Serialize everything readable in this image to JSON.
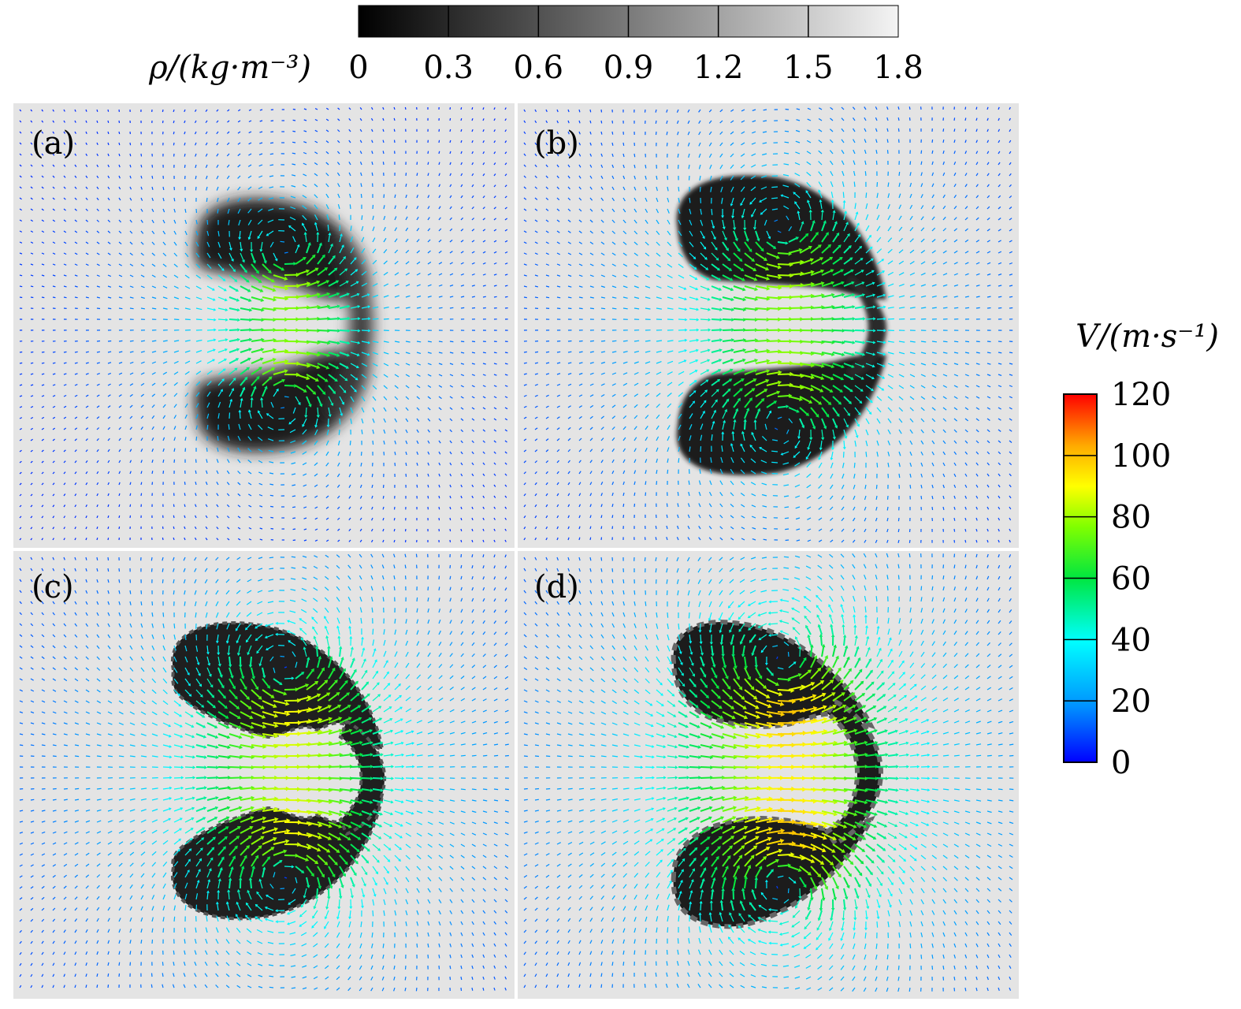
{
  "figure": {
    "density_colorbar": {
      "label": "ρ/(kg·m⁻³)",
      "ticks": [
        "0",
        "0.3",
        "0.6",
        "0.9",
        "1.2",
        "1.5",
        "1.8"
      ],
      "range": [
        0,
        1.8
      ],
      "colors": [
        "#000000",
        "#f2f2f2"
      ]
    },
    "velocity_colorbar": {
      "label": "V/(m·s⁻¹)",
      "ticks": [
        "120",
        "100",
        "80",
        "60",
        "40",
        "20",
        "0"
      ],
      "range": [
        0,
        120
      ],
      "colors": [
        "#0000ff",
        "#00a0ff",
        "#00ffff",
        "#00ff40",
        "#80ff00",
        "#ffff00",
        "#ff9900",
        "#ff0000"
      ]
    },
    "background_density_color": "#e4e4e4",
    "bubble_color": "#1a1a1a"
  },
  "chart_data": [
    {
      "type": "heatmap",
      "title": "(a)",
      "field": "density + velocity vectors"
    },
    {
      "type": "heatmap",
      "title": "(b)",
      "field": "density + velocity vectors"
    },
    {
      "type": "heatmap",
      "title": "(c)",
      "field": "density + velocity vectors"
    },
    {
      "type": "heatmap",
      "title": "(d)",
      "field": "density + velocity vectors"
    }
  ]
}
